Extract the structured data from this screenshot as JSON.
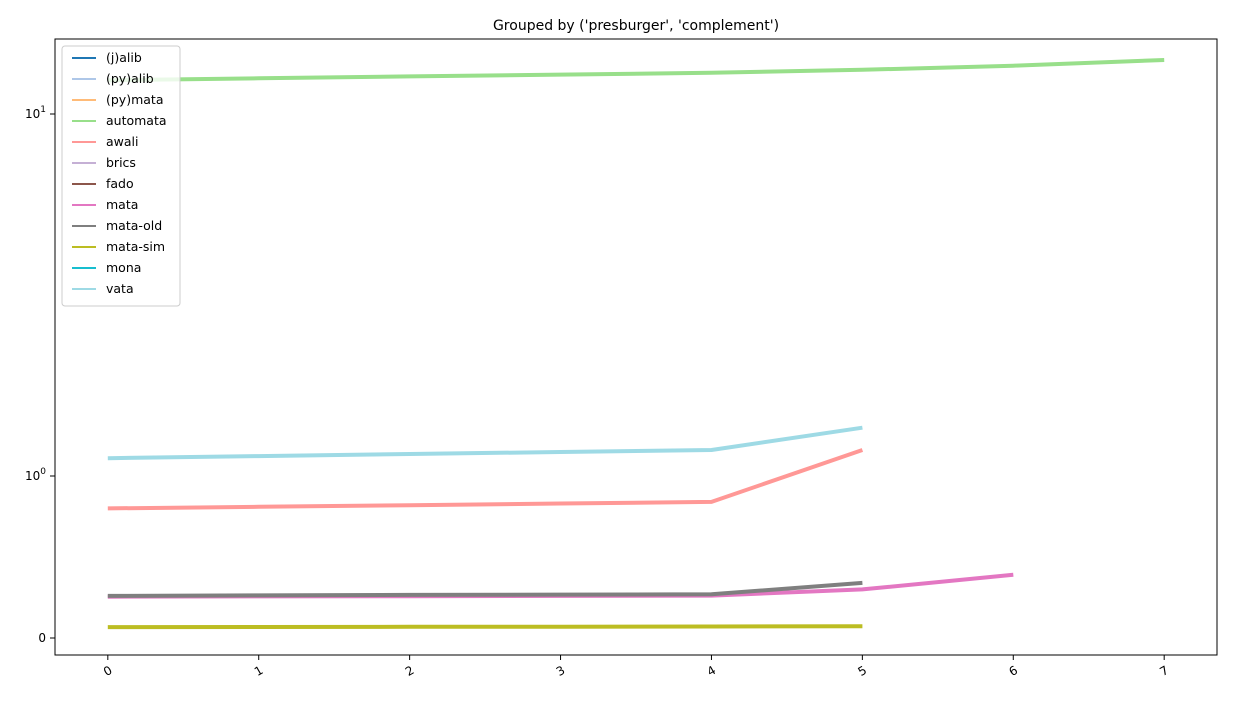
{
  "chart_data": {
    "type": "line",
    "title": "Grouped by ('presburger', 'complement')",
    "xlabel": "",
    "ylabel": "",
    "xlim": [
      -0.35,
      7.35
    ],
    "x_ticks": [
      0,
      1,
      2,
      3,
      4,
      5,
      6,
      7
    ],
    "y_scale": "symlog",
    "y_ticks": [
      {
        "value": 0,
        "base": "0",
        "exp": ""
      },
      {
        "value": 1,
        "base": "10",
        "exp": "0"
      },
      {
        "value": 10,
        "base": "10",
        "exp": "1"
      }
    ],
    "grid": false,
    "legend_position": "upper-left",
    "series": [
      {
        "name": "(j)alib",
        "color": "#1f77b4",
        "x": [],
        "y": []
      },
      {
        "name": "(py)alib",
        "color": "#aec7e8",
        "x": [],
        "y": []
      },
      {
        "name": "(py)mata",
        "color": "#ffbb78",
        "x": [],
        "y": []
      },
      {
        "name": "automata",
        "color": "#98df8a",
        "x": [
          0,
          1,
          2,
          3,
          4,
          5,
          6,
          7
        ],
        "y": [
          12.4,
          12.55,
          12.7,
          12.85,
          13.0,
          13.25,
          13.6,
          14.1
        ]
      },
      {
        "name": "awali",
        "color": "#ff9896",
        "x": [
          0,
          1,
          2,
          3,
          4,
          5
        ],
        "y": [
          0.8,
          0.81,
          0.82,
          0.83,
          0.84,
          1.18
        ]
      },
      {
        "name": "brics",
        "color": "#c5b0d5",
        "x": [],
        "y": []
      },
      {
        "name": "fado",
        "color": "#8c564b",
        "x": [],
        "y": []
      },
      {
        "name": "mata",
        "color": "#e377c2",
        "x": [
          0,
          1,
          2,
          3,
          4,
          5,
          6
        ],
        "y": [
          0.255,
          0.257,
          0.258,
          0.26,
          0.262,
          0.3,
          0.39
        ]
      },
      {
        "name": "mata-old",
        "color": "#7f7f7f",
        "x": [
          0,
          1,
          2,
          3,
          4,
          5
        ],
        "y": [
          0.26,
          0.263,
          0.266,
          0.268,
          0.27,
          0.34
        ]
      },
      {
        "name": "mata-sim",
        "color": "#bcbd22",
        "x": [
          0,
          1,
          2,
          3,
          4,
          5
        ],
        "y": [
          0.067,
          0.068,
          0.069,
          0.07,
          0.071,
          0.072
        ]
      },
      {
        "name": "mona",
        "color": "#17becf",
        "x": [],
        "y": []
      },
      {
        "name": "vata",
        "color": "#9edae5",
        "x": [
          0,
          1,
          2,
          3,
          4,
          5
        ],
        "y": [
          1.12,
          1.135,
          1.15,
          1.165,
          1.18,
          1.36
        ]
      }
    ]
  }
}
